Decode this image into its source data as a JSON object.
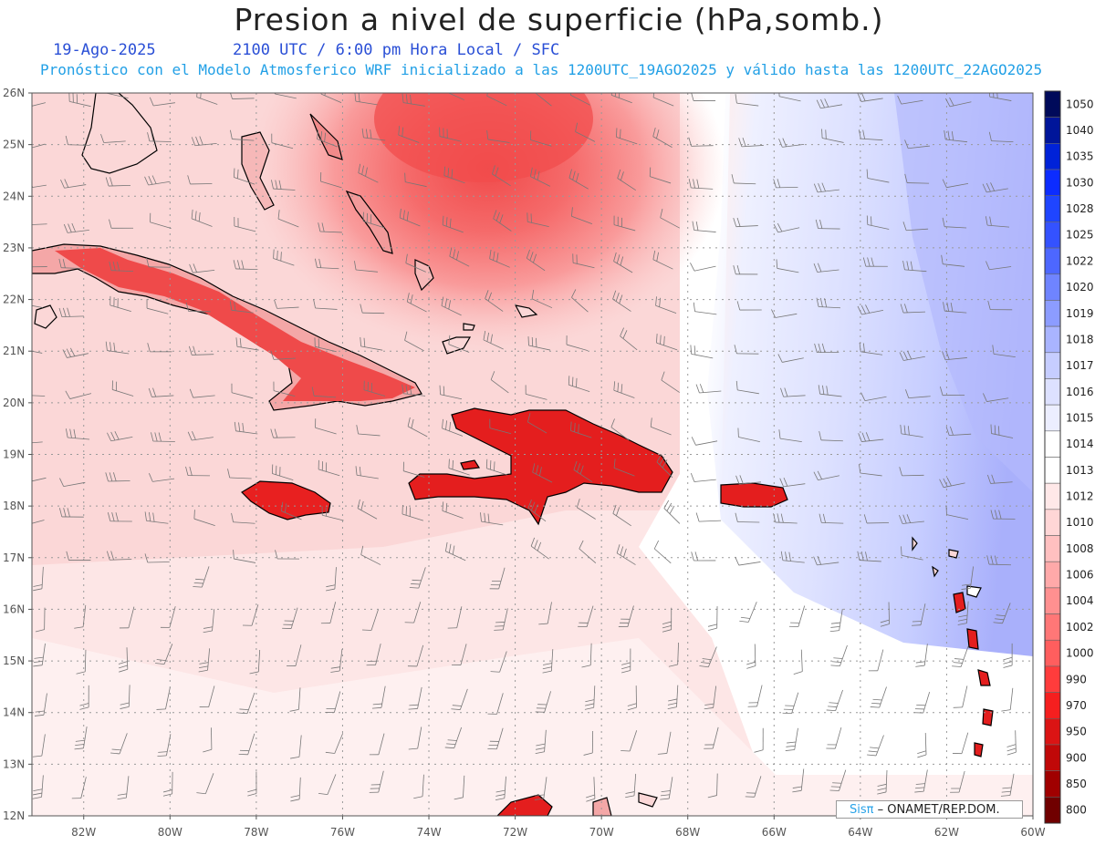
{
  "title": "Presion a nivel de superficie (hPa,somb.)",
  "date": "19-Ago-2025",
  "time_line": "2100 UTC / 6:00 pm Hora Local / SFC",
  "model_line": "Pronóstico con el Modelo Atmosferico WRF inicializado a las 1200UTC_19AGO2025 y válido hasta las  1200UTC_22AGO2025",
  "credit": {
    "brand": "Sisπ",
    "text": "– ONAMET/REP.DOM."
  },
  "lat_labels": [
    "12N",
    "13N",
    "14N",
    "15N",
    "16N",
    "17N",
    "18N",
    "19N",
    "20N",
    "21N",
    "22N",
    "23N",
    "24N",
    "25N",
    "26N"
  ],
  "lon_labels": [
    "82W",
    "80W",
    "78W",
    "76W",
    "74W",
    "72W",
    "70W",
    "68W",
    "66W",
    "64W",
    "62W",
    "60W"
  ],
  "extent": {
    "lon_min": -83.2,
    "lon_max": -60,
    "lat_min": 12,
    "lat_max": 26
  },
  "colorbar": {
    "levels": [
      "1050",
      "1040",
      "1035",
      "1030",
      "1028",
      "1025",
      "1022",
      "1020",
      "1019",
      "1018",
      "1017",
      "1016",
      "1015",
      "1014",
      "1013",
      "1012",
      "1010",
      "1008",
      "1006",
      "1004",
      "1002",
      "1000",
      "990",
      "970",
      "950",
      "900",
      "850",
      "800"
    ],
    "colors": [
      "#000a5a",
      "#00159a",
      "#0022d8",
      "#0c2cff",
      "#1f45ff",
      "#3452ff",
      "#4d67ff",
      "#6f84ff",
      "#8c9cff",
      "#a9b4ff",
      "#c6cdff",
      "#dde1ff",
      "#eceeff",
      "#ffffff",
      "#ffffff",
      "#ffe8e8",
      "#ffd6d6",
      "#ffc0c0",
      "#ffa9a9",
      "#ff9090",
      "#ff7777",
      "#ff5e5e",
      "#ff3c3c",
      "#f51f1f",
      "#db1414",
      "#c00808",
      "#a00000",
      "#700000"
    ]
  },
  "colors": {
    "sea_pink": "#fde6e6",
    "high_blue": "#aab0fb",
    "low_red": "#f25a5a",
    "land_red": "#ec2a2a",
    "coast": "#000000",
    "grid": "#999999",
    "barb": "#777777"
  }
}
